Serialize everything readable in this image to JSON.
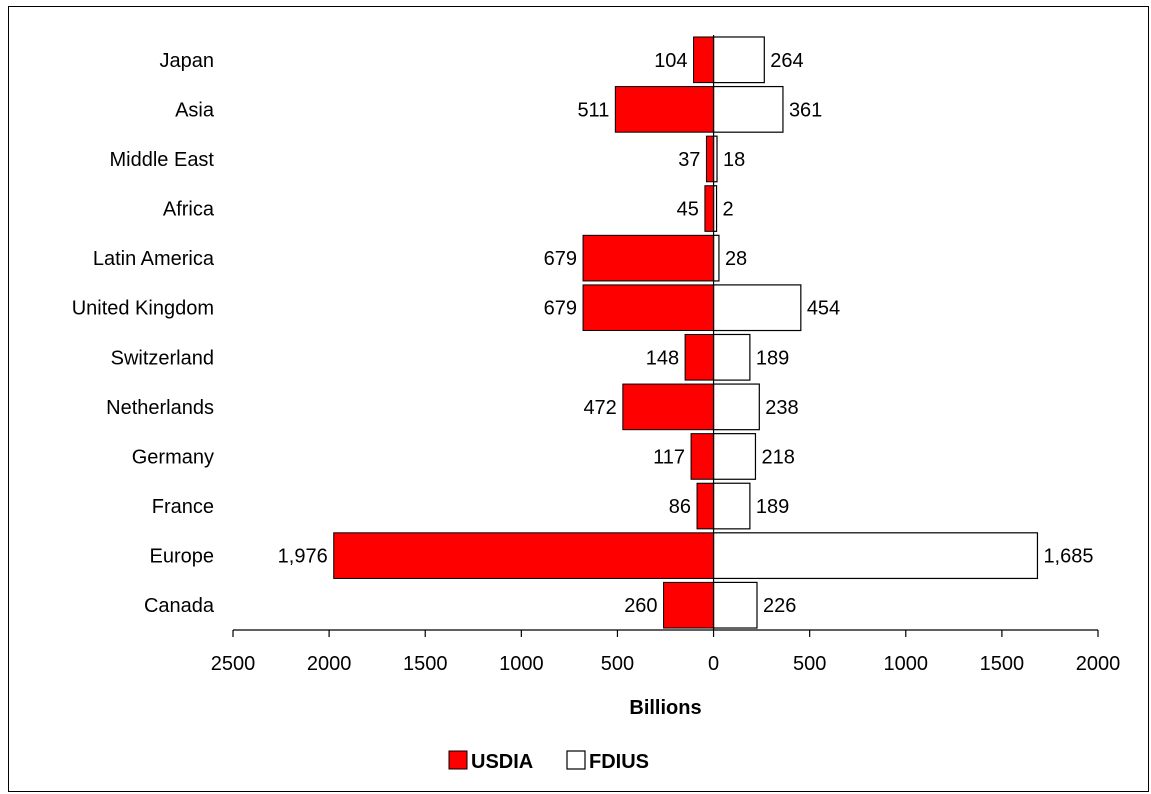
{
  "chart_data": {
    "type": "bar",
    "orientation": "horizontal",
    "categories": [
      "Japan",
      "Asia",
      "Middle East",
      "Africa",
      "Latin America",
      "United Kingdom",
      "Switzerland",
      "Netherlands",
      "Germany",
      "France",
      "Europe",
      "Canada"
    ],
    "series": [
      {
        "name": "USDIA",
        "color": "#ff0000",
        "direction": "left",
        "values": [
          104,
          511,
          37,
          45,
          679,
          679,
          148,
          472,
          117,
          86,
          1976,
          260
        ],
        "labels": [
          "104",
          "511",
          "37",
          "45",
          "679",
          "679",
          "148",
          "472",
          "117",
          "86",
          "1,976",
          "260"
        ]
      },
      {
        "name": "FDIUS",
        "color": "#ffffff",
        "direction": "right",
        "values": [
          264,
          361,
          18,
          2,
          28,
          454,
          189,
          238,
          218,
          189,
          1685,
          226
        ],
        "labels": [
          "264",
          "361",
          "18",
          "2",
          "28",
          "454",
          "189",
          "238",
          "218",
          "189",
          "1,685",
          "226"
        ]
      }
    ],
    "xlabel": "Billions",
    "xlim": [
      -2500,
      2000
    ],
    "xticks": [
      -2500,
      -2000,
      -1500,
      -1000,
      -500,
      0,
      500,
      1000,
      1500,
      2000
    ],
    "xtick_labels": [
      "2500",
      "2000",
      "1500",
      "1000",
      "500",
      "0",
      "500",
      "1000",
      "1500",
      "2000"
    ],
    "legend_position": "bottom-center",
    "grid": false
  }
}
